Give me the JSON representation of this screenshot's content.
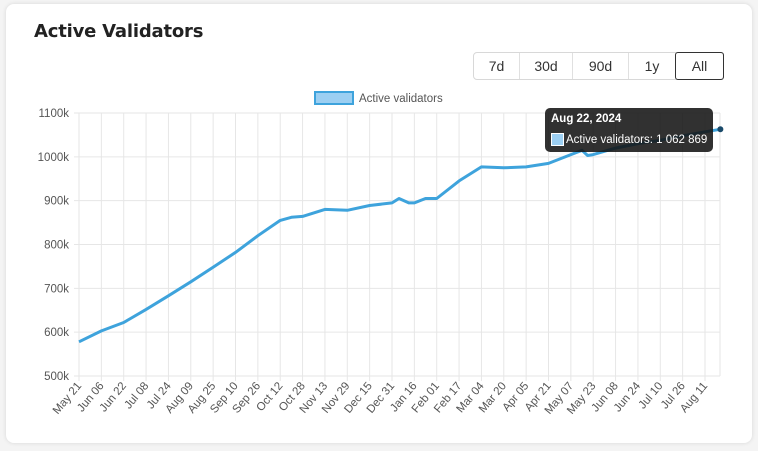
{
  "card": {
    "title": "Active Validators"
  },
  "range_buttons": [
    {
      "label": "7d"
    },
    {
      "label": "30d"
    },
    {
      "label": "90d"
    },
    {
      "label": "1y"
    },
    {
      "label": "All",
      "active": true
    }
  ],
  "tooltip": {
    "date": "Aug 22, 2024",
    "text": "Active validators: 1 062 869"
  },
  "colors": {
    "line": "#3ea3dc",
    "legend_fill": "#9ccff2",
    "grid": "#e6e6e6"
  },
  "chart_data": {
    "type": "line",
    "title": "",
    "xlabel": "",
    "ylabel": "",
    "ylim": [
      500000,
      1100000
    ],
    "y_ticks": [
      "500k",
      "600k",
      "700k",
      "800k",
      "900k",
      "1000k",
      "1100k"
    ],
    "x_ticks": [
      "May 21",
      "Jun 06",
      "Jun 22",
      "Jul 08",
      "Jul 24",
      "Aug 09",
      "Aug 25",
      "Sep 10",
      "Sep 26",
      "Oct 12",
      "Oct 28",
      "Nov 13",
      "Nov 29",
      "Dec 15",
      "Dec 31",
      "Jan 16",
      "Feb 01",
      "Feb 17",
      "Mar 04",
      "Mar 20",
      "Apr 05",
      "Apr 21",
      "May 07",
      "May 23",
      "Jun 08",
      "Jun 24",
      "Jul 10",
      "Jul 26",
      "Aug 11"
    ],
    "grid": true,
    "legend": "top-center",
    "series": [
      {
        "name": "Active validators",
        "x": [
          "2023-05-21",
          "2023-06-06",
          "2023-06-22",
          "2023-07-08",
          "2023-07-24",
          "2023-08-09",
          "2023-08-25",
          "2023-09-10",
          "2023-09-26",
          "2023-10-12",
          "2023-10-20",
          "2023-10-28",
          "2023-11-13",
          "2023-11-29",
          "2023-12-15",
          "2023-12-31",
          "2024-01-05",
          "2024-01-12",
          "2024-01-16",
          "2024-01-24",
          "2024-02-01",
          "2024-02-17",
          "2024-03-04",
          "2024-03-20",
          "2024-04-05",
          "2024-04-21",
          "2024-05-07",
          "2024-05-15",
          "2024-05-19",
          "2024-05-23",
          "2024-06-08",
          "2024-06-24",
          "2024-07-10",
          "2024-07-26",
          "2024-08-11",
          "2024-08-22"
        ],
        "y": [
          578000,
          603000,
          622000,
          652000,
          683000,
          715000,
          748000,
          782000,
          820000,
          855000,
          862000,
          864000,
          880000,
          878000,
          889000,
          895000,
          905000,
          895000,
          895000,
          905000,
          905000,
          945000,
          977000,
          975000,
          977000,
          985000,
          1005000,
          1015000,
          1003000,
          1005000,
          1020000,
          1030000,
          1038000,
          1048000,
          1057000,
          1062869
        ]
      }
    ]
  }
}
